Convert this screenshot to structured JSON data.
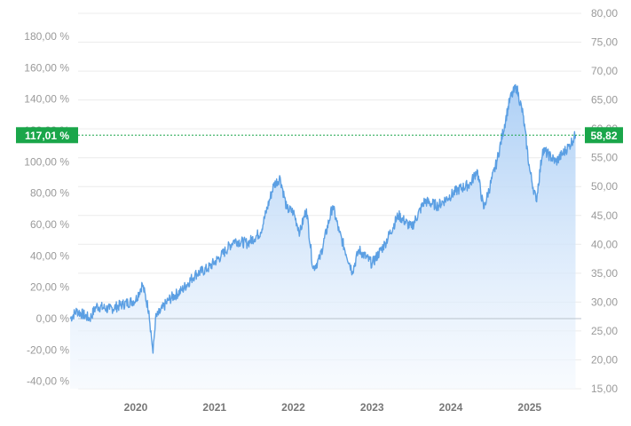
{
  "chart_data": {
    "type": "area",
    "title": "",
    "xlabel": "",
    "ylabel": "",
    "x_ticks": [
      "2020",
      "2021",
      "2022",
      "2023",
      "2024",
      "2025"
    ],
    "y_left": {
      "ticks": [
        "180,00 %",
        "160,00 %",
        "140,00 %",
        "120,00 %",
        "100,00 %",
        "80,00 %",
        "60,00 %",
        "40,00 %",
        "20,00 %",
        "0,00 %",
        "-20,00 %",
        "-40,00 %"
      ],
      "range": [
        -45,
        190
      ],
      "unit": "%"
    },
    "y_right": {
      "ticks": [
        "80,00",
        "75,00",
        "70,00",
        "65,00",
        "60,00",
        "55,00",
        "50,00",
        "45,00",
        "40,00",
        "35,00",
        "30,00",
        "25,00",
        "20,00",
        "15,00"
      ],
      "range": [
        15,
        80
      ]
    },
    "grid": true,
    "current": {
      "percent_label": "117,01 %",
      "price_label": "58,82",
      "percent": 117.01,
      "price": 58.82
    },
    "series": [
      {
        "values_percent": [
          [
            "2019-03",
            0
          ],
          [
            "2019-04",
            5
          ],
          [
            "2019-06",
            0
          ],
          [
            "2019-07",
            8
          ],
          [
            "2019-09",
            6
          ],
          [
            "2019-11",
            9
          ],
          [
            "2020-01",
            12
          ],
          [
            "2020-02",
            22
          ],
          [
            "2020-03",
            5
          ],
          [
            "2020-03-20",
            -22
          ],
          [
            "2020-04",
            0
          ],
          [
            "2020-06",
            12
          ],
          [
            "2020-08",
            18
          ],
          [
            "2020-10",
            28
          ],
          [
            "2020-12",
            32
          ],
          [
            "2021-02",
            40
          ],
          [
            "2021-04",
            50
          ],
          [
            "2021-06",
            48
          ],
          [
            "2021-08",
            55
          ],
          [
            "2021-10",
            85
          ],
          [
            "2021-11",
            90
          ],
          [
            "2021-12",
            70
          ],
          [
            "2022-01",
            68
          ],
          [
            "2022-02",
            55
          ],
          [
            "2022-03",
            70
          ],
          [
            "2022-04",
            32
          ],
          [
            "2022-05",
            38
          ],
          [
            "2022-07",
            72
          ],
          [
            "2022-08",
            55
          ],
          [
            "2022-10",
            30
          ],
          [
            "2022-11",
            44
          ],
          [
            "2023-01",
            35
          ],
          [
            "2023-03",
            48
          ],
          [
            "2023-05",
            66
          ],
          [
            "2023-07",
            58
          ],
          [
            "2023-09",
            75
          ],
          [
            "2023-11",
            72
          ],
          [
            "2024-02",
            82
          ],
          [
            "2024-04",
            86
          ],
          [
            "2024-05",
            95
          ],
          [
            "2024-06",
            70
          ],
          [
            "2024-08",
            100
          ],
          [
            "2024-10",
            140
          ],
          [
            "2024-11",
            148
          ],
          [
            "2024-12",
            130
          ],
          [
            "2025-01",
            95
          ],
          [
            "2025-02",
            75
          ],
          [
            "2025-03",
            108
          ],
          [
            "2025-05",
            100
          ],
          [
            "2025-07",
            110
          ],
          [
            "2025-08",
            117.01
          ]
        ]
      }
    ],
    "colors": {
      "line": "#5b9fe3",
      "fill_top": "#a9cdf5",
      "fill_bottom": "#f3f8fe",
      "badge": "#1aa64a",
      "grid": "#ececec",
      "zero_line": "#b9c2cc"
    }
  }
}
